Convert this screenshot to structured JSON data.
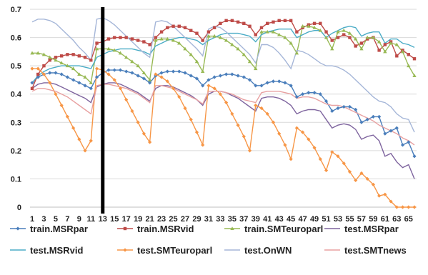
{
  "chart_data": {
    "type": "line",
    "title": "",
    "xlabel": "",
    "ylabel": "",
    "grid": true,
    "legend_position": "bottom",
    "x": [
      1,
      2,
      3,
      4,
      5,
      6,
      7,
      8,
      9,
      10,
      11,
      12,
      13,
      14,
      15,
      16,
      17,
      18,
      19,
      20,
      21,
      22,
      23,
      24,
      25,
      26,
      27,
      28,
      29,
      30,
      31,
      32,
      33,
      34,
      35,
      36,
      37,
      38,
      39,
      40,
      41,
      42,
      43,
      44,
      45,
      46,
      47,
      48,
      49,
      50,
      51,
      52,
      53,
      54,
      55,
      56,
      57,
      58,
      59,
      60,
      61,
      62,
      63,
      64,
      65,
      66
    ],
    "x_tick_labels": [
      "1",
      "3",
      "5",
      "7",
      "9",
      "11",
      "13",
      "15",
      "17",
      "19",
      "21",
      "23",
      "25",
      "27",
      "29",
      "31",
      "33",
      "35",
      "37",
      "39",
      "41",
      "43",
      "45",
      "47",
      "49",
      "51",
      "53",
      "55",
      "57",
      "59",
      "61",
      "63",
      "65"
    ],
    "ylim": [
      0,
      0.7
    ],
    "y_ticks": [
      "0",
      "0.1",
      "0.2",
      "0.3",
      "0.4",
      "0.5",
      "0.6",
      "0.7"
    ],
    "vertical_marker_x": 13,
    "series": [
      {
        "name": "train.MSRpar",
        "color": "#4a7ebb",
        "marker": "diamond",
        "values": [
          0.44,
          0.46,
          0.47,
          0.475,
          0.475,
          0.47,
          0.46,
          0.45,
          0.44,
          0.43,
          0.42,
          0.46,
          0.475,
          0.485,
          0.485,
          0.485,
          0.48,
          0.475,
          0.465,
          0.455,
          0.44,
          0.465,
          0.475,
          0.48,
          0.48,
          0.48,
          0.475,
          0.465,
          0.455,
          0.43,
          0.45,
          0.46,
          0.465,
          0.47,
          0.47,
          0.465,
          0.46,
          0.45,
          0.43,
          0.43,
          0.44,
          0.445,
          0.445,
          0.44,
          0.43,
          0.39,
          0.4,
          0.405,
          0.405,
          0.4,
          0.375,
          0.34,
          0.35,
          0.355,
          0.355,
          0.345,
          0.3,
          0.31,
          0.32,
          0.32,
          0.26,
          0.27,
          0.28,
          0.22,
          0.23,
          0.18
        ]
      },
      {
        "name": "train.MSRvid",
        "color": "#be4b48",
        "marker": "square",
        "values": [
          0.42,
          0.47,
          0.5,
          0.52,
          0.53,
          0.535,
          0.54,
          0.54,
          0.535,
          0.53,
          0.52,
          0.58,
          0.585,
          0.595,
          0.6,
          0.6,
          0.6,
          0.595,
          0.59,
          0.585,
          0.575,
          0.6,
          0.62,
          0.635,
          0.64,
          0.64,
          0.635,
          0.625,
          0.615,
          0.59,
          0.62,
          0.635,
          0.65,
          0.66,
          0.66,
          0.655,
          0.65,
          0.64,
          0.61,
          0.635,
          0.65,
          0.655,
          0.66,
          0.66,
          0.66,
          0.62,
          0.635,
          0.645,
          0.65,
          0.65,
          0.62,
          0.59,
          0.6,
          0.61,
          0.6,
          0.57,
          0.58,
          0.595,
          0.6,
          0.555,
          0.575,
          0.585,
          0.535,
          0.555,
          0.54,
          0.525
        ]
      },
      {
        "name": "train.SMTeuroparl",
        "color": "#98b954",
        "marker": "triangle",
        "values": [
          0.545,
          0.545,
          0.54,
          0.53,
          0.52,
          0.51,
          0.5,
          0.49,
          0.47,
          0.46,
          0.44,
          0.56,
          0.56,
          0.56,
          0.555,
          0.545,
          0.53,
          0.515,
          0.5,
          0.475,
          0.45,
          0.59,
          0.595,
          0.595,
          0.59,
          0.58,
          0.56,
          0.54,
          0.515,
          0.48,
          0.605,
          0.605,
          0.6,
          0.59,
          0.575,
          0.56,
          0.54,
          0.515,
          0.49,
          0.62,
          0.62,
          0.62,
          0.61,
          0.6,
          0.58,
          0.545,
          0.64,
          0.64,
          0.635,
          0.625,
          0.6,
          0.56,
          0.62,
          0.625,
          0.615,
          0.595,
          0.56,
          0.6,
          0.6,
          0.585,
          0.55,
          0.58,
          0.575,
          0.55,
          0.5,
          0.465
        ]
      },
      {
        "name": "test.MSRpar",
        "color": "#7e649e",
        "marker": "none",
        "values": [
          0.42,
          0.435,
          0.44,
          0.44,
          0.435,
          0.425,
          0.415,
          0.405,
          0.395,
          0.385,
          0.37,
          0.425,
          0.435,
          0.44,
          0.44,
          0.435,
          0.425,
          0.415,
          0.405,
          0.39,
          0.375,
          0.42,
          0.43,
          0.43,
          0.425,
          0.415,
          0.405,
          0.395,
          0.38,
          0.36,
          0.4,
          0.41,
          0.41,
          0.405,
          0.395,
          0.385,
          0.37,
          0.355,
          0.34,
          0.385,
          0.39,
          0.39,
          0.385,
          0.375,
          0.36,
          0.33,
          0.34,
          0.345,
          0.345,
          0.34,
          0.31,
          0.28,
          0.29,
          0.295,
          0.29,
          0.275,
          0.24,
          0.25,
          0.255,
          0.235,
          0.18,
          0.19,
          0.16,
          0.14,
          0.15,
          0.1
        ]
      },
      {
        "name": "test.MSRvid",
        "color": "#4aacc6",
        "marker": "none",
        "values": [
          0.44,
          0.465,
          0.48,
          0.49,
          0.495,
          0.5,
          0.5,
          0.5,
          0.5,
          0.495,
          0.49,
          0.53,
          0.54,
          0.55,
          0.555,
          0.56,
          0.56,
          0.56,
          0.555,
          0.55,
          0.54,
          0.57,
          0.58,
          0.59,
          0.595,
          0.6,
          0.6,
          0.595,
          0.59,
          0.575,
          0.59,
          0.6,
          0.61,
          0.615,
          0.615,
          0.615,
          0.61,
          0.605,
          0.585,
          0.61,
          0.62,
          0.625,
          0.63,
          0.63,
          0.63,
          0.6,
          0.61,
          0.62,
          0.625,
          0.625,
          0.6,
          0.615,
          0.625,
          0.635,
          0.64,
          0.635,
          0.605,
          0.615,
          0.62,
          0.62,
          0.58,
          0.595,
          0.595,
          0.58,
          0.575,
          0.565
        ]
      },
      {
        "name": "test.SMTeuroparl",
        "color": "#f79646",
        "marker": "diamond",
        "values": [
          0.49,
          0.49,
          0.47,
          0.44,
          0.4,
          0.36,
          0.32,
          0.28,
          0.24,
          0.2,
          0.235,
          0.49,
          0.485,
          0.47,
          0.45,
          0.42,
          0.38,
          0.34,
          0.3,
          0.26,
          0.23,
          0.47,
          0.46,
          0.445,
          0.42,
          0.39,
          0.35,
          0.31,
          0.265,
          0.22,
          0.43,
          0.42,
          0.4,
          0.37,
          0.33,
          0.29,
          0.25,
          0.2,
          0.36,
          0.35,
          0.33,
          0.3,
          0.26,
          0.22,
          0.17,
          0.28,
          0.265,
          0.24,
          0.21,
          0.17,
          0.13,
          0.195,
          0.18,
          0.155,
          0.125,
          0.095,
          0.12,
          0.1,
          0.08,
          0.04,
          0.045,
          0.02,
          0.0,
          0.0,
          0.0,
          0.0
        ]
      },
      {
        "name": "test.OnWN",
        "color": "#a5b6d8",
        "marker": "none",
        "values": [
          0.655,
          0.665,
          0.665,
          0.66,
          0.65,
          0.63,
          0.61,
          0.59,
          0.565,
          0.545,
          0.52,
          0.665,
          0.67,
          0.66,
          0.645,
          0.625,
          0.605,
          0.585,
          0.565,
          0.545,
          0.53,
          0.655,
          0.66,
          0.655,
          0.64,
          0.62,
          0.6,
          0.58,
          0.56,
          0.535,
          0.63,
          0.64,
          0.635,
          0.62,
          0.6,
          0.58,
          0.56,
          0.54,
          0.51,
          0.575,
          0.575,
          0.565,
          0.545,
          0.52,
          0.49,
          0.555,
          0.55,
          0.54,
          0.525,
          0.51,
          0.5,
          0.5,
          0.495,
          0.485,
          0.47,
          0.45,
          0.43,
          0.41,
          0.39,
          0.375,
          0.37,
          0.355,
          0.33,
          0.315,
          0.31,
          0.265
        ]
      },
      {
        "name": "test.SMTnews",
        "color": "#e8a0a0",
        "marker": "none",
        "values": [
          0.41,
          0.42,
          0.42,
          0.415,
          0.41,
          0.4,
          0.39,
          0.375,
          0.36,
          0.345,
          0.33,
          0.43,
          0.435,
          0.435,
          0.43,
          0.425,
          0.42,
          0.41,
          0.4,
          0.385,
          0.37,
          0.43,
          0.43,
          0.425,
          0.42,
          0.41,
          0.4,
          0.39,
          0.38,
          0.365,
          0.41,
          0.41,
          0.41,
          0.405,
          0.4,
          0.39,
          0.38,
          0.375,
          0.37,
          0.405,
          0.41,
          0.41,
          0.41,
          0.405,
          0.4,
          0.385,
          0.39,
          0.39,
          0.385,
          0.375,
          0.365,
          0.36,
          0.36,
          0.355,
          0.345,
          0.335,
          0.325,
          0.315,
          0.305,
          0.29,
          0.28,
          0.27,
          0.26,
          0.245,
          0.235,
          0.22
        ]
      }
    ]
  }
}
